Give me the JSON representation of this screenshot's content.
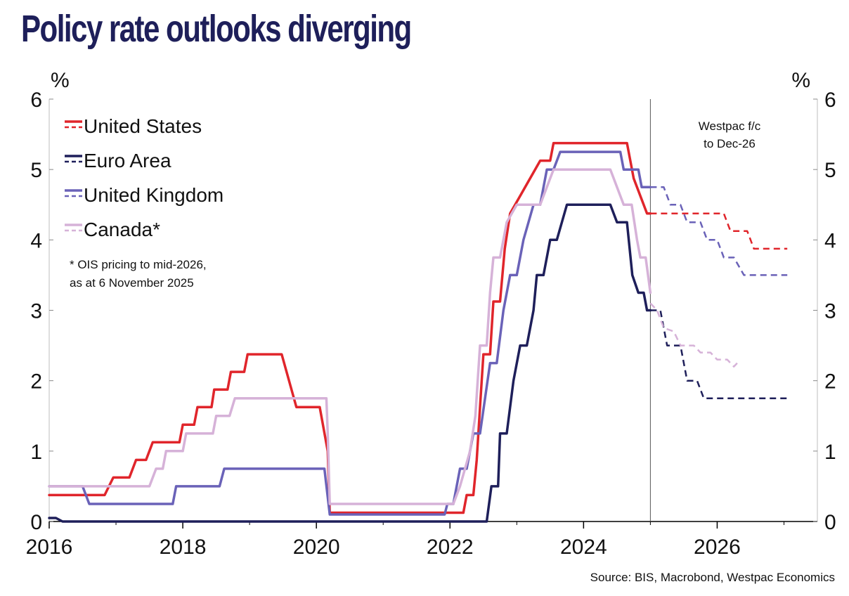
{
  "title": "Policy rate outlooks diverging",
  "source": "Source: BIS, Macrobond, Westpac Economics",
  "chart_data": {
    "type": "line",
    "title": "Policy rate outlooks diverging",
    "ylabel_left": "%",
    "ylabel_right": "%",
    "xlim": [
      2016,
      2027.5
    ],
    "ylim": [
      0,
      6
    ],
    "x_ticks": [
      2016,
      2018,
      2020,
      2022,
      2024,
      2026
    ],
    "x_tick_labels": [
      "2016",
      "2018",
      "2020",
      "2022",
      "2024",
      "2026"
    ],
    "y_ticks": [
      0,
      1,
      2,
      3,
      4,
      5,
      6
    ],
    "y_tick_labels": [
      "0",
      "1",
      "2",
      "3",
      "4",
      "5",
      "6"
    ],
    "forecast_start": 2025.0,
    "annotation": [
      "Westpac f/c",
      "to Dec-26"
    ],
    "note": [
      "* OIS pricing to mid-2026,",
      "as at 6 November 2025"
    ],
    "legend_position": "top-left",
    "series": [
      {
        "name": "United States",
        "color": "#e0252b",
        "actual": [
          [
            2016.0,
            0.375
          ],
          [
            2016.83,
            0.375
          ],
          [
            2016.96,
            0.625
          ],
          [
            2017.2,
            0.625
          ],
          [
            2017.3,
            0.875
          ],
          [
            2017.45,
            0.875
          ],
          [
            2017.55,
            1.125
          ],
          [
            2017.95,
            1.125
          ],
          [
            2018.0,
            1.375
          ],
          [
            2018.17,
            1.375
          ],
          [
            2018.22,
            1.625
          ],
          [
            2018.43,
            1.625
          ],
          [
            2018.47,
            1.875
          ],
          [
            2018.67,
            1.875
          ],
          [
            2018.72,
            2.125
          ],
          [
            2018.92,
            2.125
          ],
          [
            2018.97,
            2.375
          ],
          [
            2019.48,
            2.375
          ],
          [
            2019.7,
            1.625
          ],
          [
            2020.05,
            1.625
          ],
          [
            2020.17,
            1.0
          ],
          [
            2020.2,
            0.125
          ],
          [
            2021.95,
            0.125
          ],
          [
            2022.2,
            0.125
          ],
          [
            2022.25,
            0.375
          ],
          [
            2022.35,
            0.375
          ],
          [
            2022.4,
            0.875
          ],
          [
            2022.45,
            1.625
          ],
          [
            2022.5,
            2.375
          ],
          [
            2022.6,
            2.375
          ],
          [
            2022.65,
            3.125
          ],
          [
            2022.75,
            3.125
          ],
          [
            2022.82,
            3.875
          ],
          [
            2022.9,
            4.375
          ],
          [
            2023.05,
            4.625
          ],
          [
            2023.2,
            4.875
          ],
          [
            2023.35,
            5.125
          ],
          [
            2023.5,
            5.125
          ],
          [
            2023.55,
            5.375
          ],
          [
            2024.65,
            5.375
          ],
          [
            2024.75,
            4.875
          ],
          [
            2024.85,
            4.625
          ],
          [
            2024.95,
            4.375
          ],
          [
            2025.0,
            4.375
          ]
        ],
        "forecast": [
          [
            2025.0,
            4.375
          ],
          [
            2026.1,
            4.375
          ],
          [
            2026.2,
            4.125
          ],
          [
            2026.45,
            4.125
          ],
          [
            2026.55,
            3.875
          ],
          [
            2027.05,
            3.875
          ]
        ]
      },
      {
        "name": "Euro Area",
        "color": "#1e1f5a",
        "actual": [
          [
            2016.0,
            0.05
          ],
          [
            2016.1,
            0.05
          ],
          [
            2016.2,
            0.0
          ],
          [
            2022.55,
            0.0
          ],
          [
            2022.62,
            0.5
          ],
          [
            2022.72,
            0.5
          ],
          [
            2022.75,
            1.25
          ],
          [
            2022.85,
            1.25
          ],
          [
            2022.95,
            2.0
          ],
          [
            2023.05,
            2.5
          ],
          [
            2023.15,
            2.5
          ],
          [
            2023.25,
            3.0
          ],
          [
            2023.3,
            3.5
          ],
          [
            2023.4,
            3.5
          ],
          [
            2023.5,
            4.0
          ],
          [
            2023.6,
            4.0
          ],
          [
            2023.75,
            4.5
          ],
          [
            2024.4,
            4.5
          ],
          [
            2024.5,
            4.25
          ],
          [
            2024.65,
            4.25
          ],
          [
            2024.73,
            3.5
          ],
          [
            2024.82,
            3.25
          ],
          [
            2024.9,
            3.25
          ],
          [
            2024.95,
            3.0
          ],
          [
            2025.0,
            3.0
          ]
        ],
        "forecast": [
          [
            2025.0,
            3.0
          ],
          [
            2025.15,
            3.0
          ],
          [
            2025.25,
            2.5
          ],
          [
            2025.45,
            2.5
          ],
          [
            2025.55,
            2.0
          ],
          [
            2025.7,
            2.0
          ],
          [
            2025.8,
            1.75
          ],
          [
            2027.05,
            1.75
          ]
        ]
      },
      {
        "name": "United Kingdom",
        "color": "#6a62b8",
        "actual": [
          [
            2016.0,
            0.5
          ],
          [
            2016.5,
            0.5
          ],
          [
            2016.6,
            0.25
          ],
          [
            2017.85,
            0.25
          ],
          [
            2017.9,
            0.5
          ],
          [
            2018.55,
            0.5
          ],
          [
            2018.62,
            0.75
          ],
          [
            2020.12,
            0.75
          ],
          [
            2020.2,
            0.1
          ],
          [
            2021.92,
            0.1
          ],
          [
            2021.96,
            0.25
          ],
          [
            2022.05,
            0.25
          ],
          [
            2022.15,
            0.75
          ],
          [
            2022.25,
            0.75
          ],
          [
            2022.35,
            1.25
          ],
          [
            2022.45,
            1.25
          ],
          [
            2022.6,
            2.25
          ],
          [
            2022.7,
            2.25
          ],
          [
            2022.8,
            3.0
          ],
          [
            2022.9,
            3.5
          ],
          [
            2023.0,
            3.5
          ],
          [
            2023.1,
            4.0
          ],
          [
            2023.25,
            4.5
          ],
          [
            2023.35,
            4.5
          ],
          [
            2023.45,
            5.0
          ],
          [
            2023.55,
            5.0
          ],
          [
            2023.65,
            5.25
          ],
          [
            2024.55,
            5.25
          ],
          [
            2024.6,
            5.0
          ],
          [
            2024.82,
            5.0
          ],
          [
            2024.87,
            4.75
          ],
          [
            2025.0,
            4.75
          ]
        ],
        "forecast": [
          [
            2025.0,
            4.75
          ],
          [
            2025.2,
            4.75
          ],
          [
            2025.3,
            4.5
          ],
          [
            2025.45,
            4.5
          ],
          [
            2025.55,
            4.25
          ],
          [
            2025.75,
            4.25
          ],
          [
            2025.85,
            4.0
          ],
          [
            2026.0,
            4.0
          ],
          [
            2026.1,
            3.75
          ],
          [
            2026.25,
            3.75
          ],
          [
            2026.4,
            3.5
          ],
          [
            2027.05,
            3.5
          ]
        ]
      },
      {
        "name": "Canada*",
        "color": "#d6b2d8",
        "actual": [
          [
            2016.0,
            0.5
          ],
          [
            2017.5,
            0.5
          ],
          [
            2017.6,
            0.75
          ],
          [
            2017.7,
            0.75
          ],
          [
            2017.75,
            1.0
          ],
          [
            2018.0,
            1.0
          ],
          [
            2018.05,
            1.25
          ],
          [
            2018.45,
            1.25
          ],
          [
            2018.5,
            1.5
          ],
          [
            2018.7,
            1.5
          ],
          [
            2018.78,
            1.75
          ],
          [
            2020.15,
            1.75
          ],
          [
            2020.17,
            1.25
          ],
          [
            2020.2,
            0.25
          ],
          [
            2022.05,
            0.25
          ],
          [
            2022.15,
            0.5
          ],
          [
            2022.3,
            1.0
          ],
          [
            2022.38,
            1.5
          ],
          [
            2022.45,
            2.5
          ],
          [
            2022.55,
            2.5
          ],
          [
            2022.6,
            3.25
          ],
          [
            2022.65,
            3.75
          ],
          [
            2022.75,
            3.75
          ],
          [
            2022.85,
            4.25
          ],
          [
            2023.0,
            4.5
          ],
          [
            2023.35,
            4.5
          ],
          [
            2023.45,
            4.75
          ],
          [
            2023.55,
            5.0
          ],
          [
            2024.4,
            5.0
          ],
          [
            2024.5,
            4.75
          ],
          [
            2024.6,
            4.5
          ],
          [
            2024.72,
            4.5
          ],
          [
            2024.8,
            4.0
          ],
          [
            2024.85,
            3.75
          ],
          [
            2024.93,
            3.75
          ],
          [
            2025.0,
            3.25
          ]
        ],
        "forecast": [
          [
            2025.0,
            3.1
          ],
          [
            2025.1,
            3.0
          ],
          [
            2025.2,
            2.75
          ],
          [
            2025.35,
            2.7
          ],
          [
            2025.45,
            2.5
          ],
          [
            2025.65,
            2.5
          ],
          [
            2025.75,
            2.4
          ],
          [
            2025.9,
            2.4
          ],
          [
            2026.0,
            2.3
          ],
          [
            2026.15,
            2.3
          ],
          [
            2026.25,
            2.2
          ],
          [
            2026.3,
            2.25
          ]
        ]
      }
    ]
  }
}
